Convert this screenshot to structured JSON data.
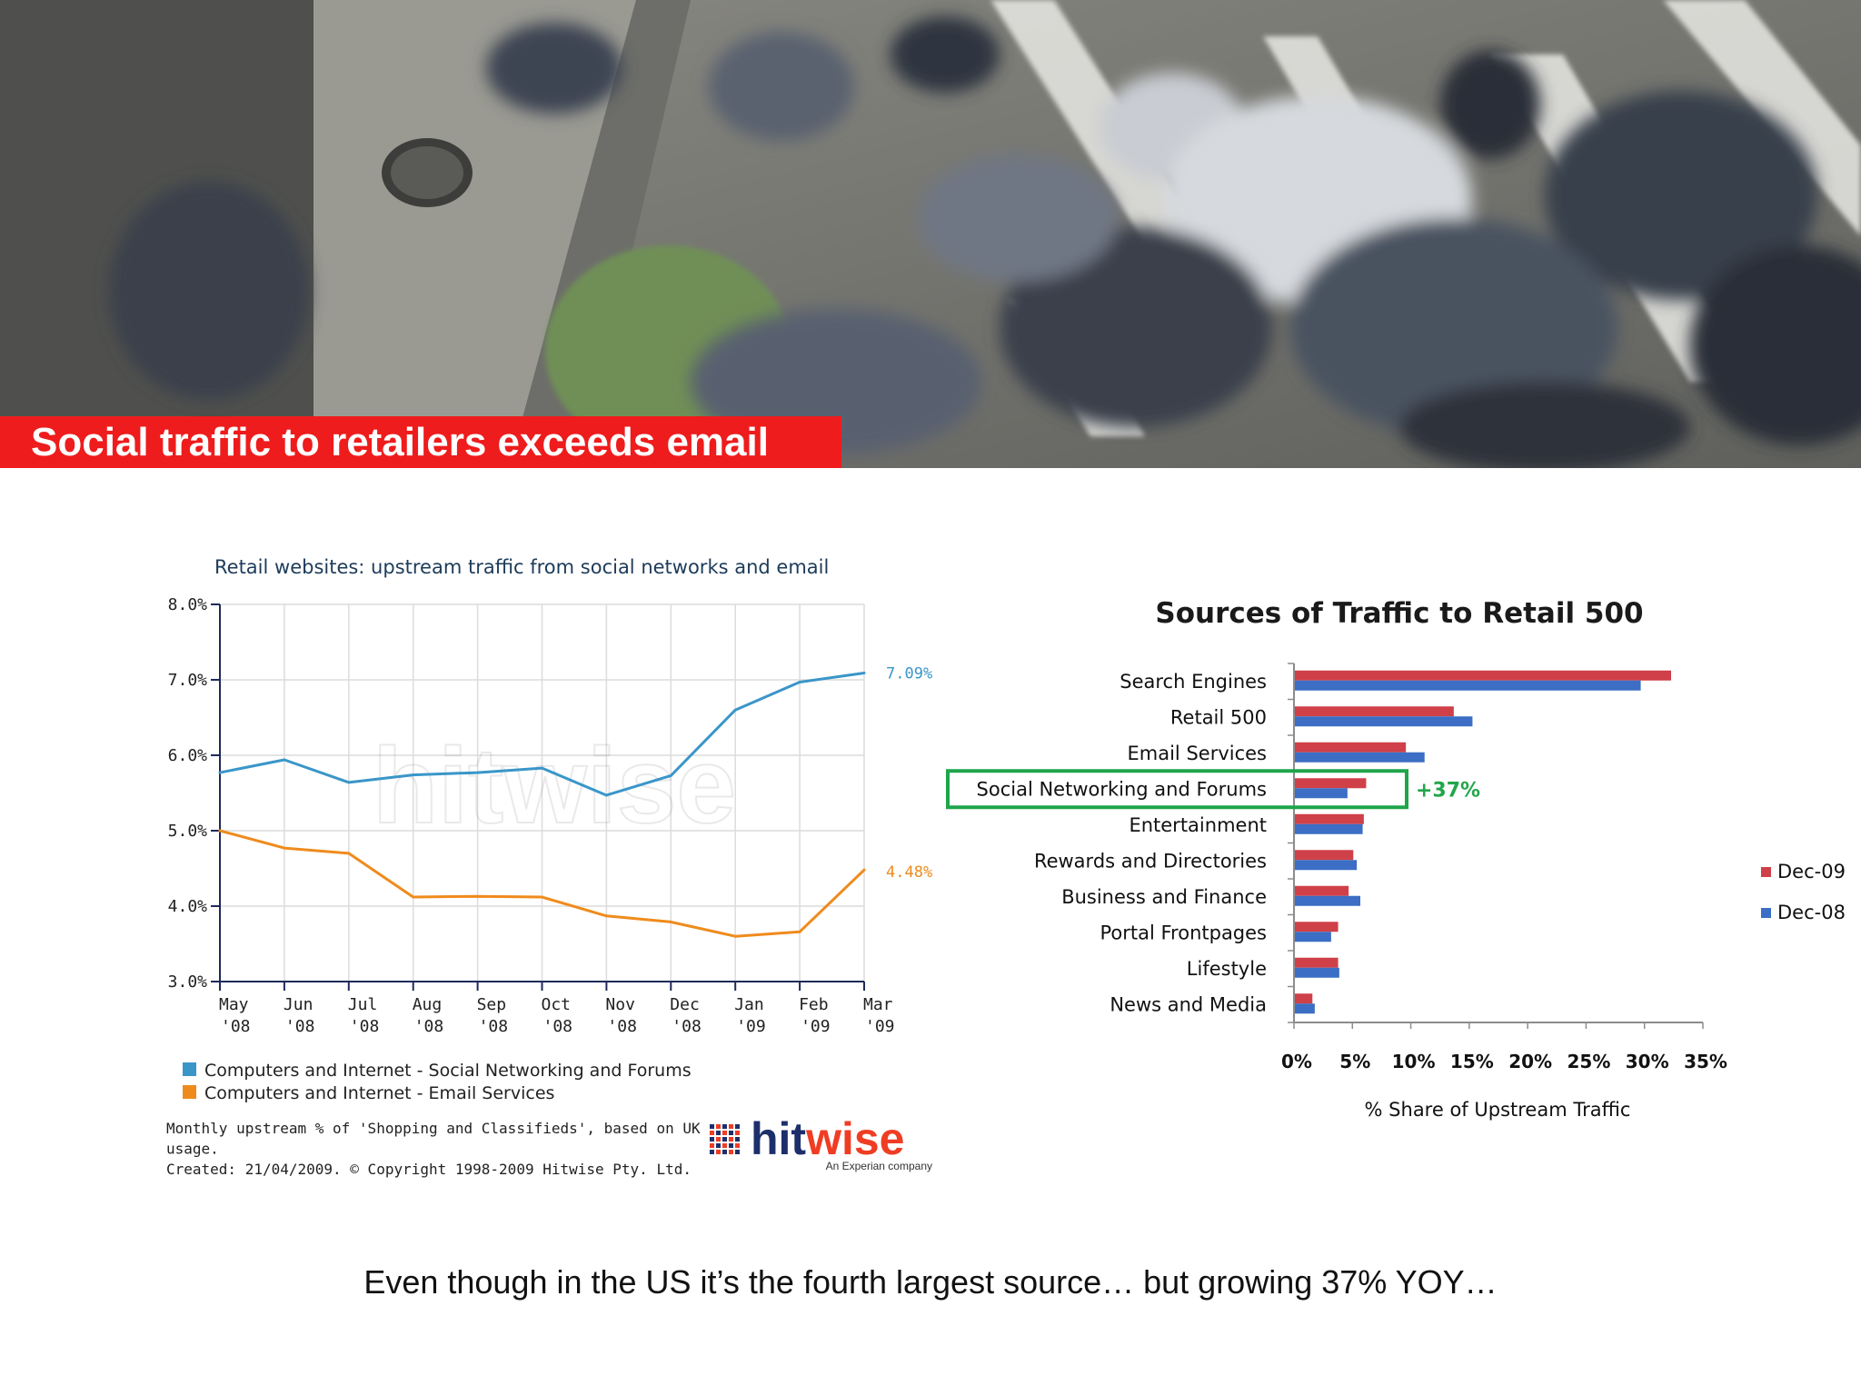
{
  "slide": {
    "title": "Social traffic to retailers exceeds email",
    "caption": "Even though in the US it’s the fourth largest source… but growing 37% YOY…"
  },
  "chart_data": [
    {
      "type": "line",
      "title": "Retail websites: upstream traffic from social networks and email",
      "x": [
        "May '08",
        "Jun '08",
        "Jul '08",
        "Aug '08",
        "Sep '08",
        "Oct '08",
        "Nov '08",
        "Dec '08",
        "Jan '09",
        "Feb '09",
        "Mar '09"
      ],
      "ylim": [
        3.0,
        8.0
      ],
      "yticks": [
        "3.0%",
        "4.0%",
        "5.0%",
        "6.0%",
        "7.0%",
        "8.0%"
      ],
      "grid": true,
      "series": [
        {
          "name": "Computers and Internet - Social Networking and Forums",
          "color": "#3a96c9",
          "values": [
            5.77,
            5.94,
            5.64,
            5.74,
            5.77,
            5.83,
            5.47,
            5.73,
            6.6,
            6.97,
            7.09
          ],
          "end_label": "7.09%"
        },
        {
          "name": "Computers and Internet - Email Services",
          "color": "#ef8b1c",
          "values": [
            5.0,
            4.77,
            4.7,
            4.12,
            4.13,
            4.12,
            3.87,
            3.79,
            3.6,
            3.66,
            4.48
          ],
          "end_label": "4.48%"
        }
      ],
      "note": [
        "Monthly upstream % of 'Shopping and Classifieds', based on UK",
        "usage.",
        "Created: 21/04/2009. © Copyright 1998-2009 Hitwise Pty. Ltd."
      ],
      "watermark": "hitwise",
      "logo": {
        "brand_a": "hit",
        "brand_b": "wise",
        "tagline": "An Experian company"
      }
    },
    {
      "type": "bar",
      "orientation": "horizontal",
      "title": "Sources of Traffic to Retail 500",
      "categories": [
        "Search Engines",
        "Retail 500",
        "Email Services",
        "Social Networking and Forums",
        "Entertainment",
        "Rewards and Directories",
        "Business and Finance",
        "Portal Frontpages",
        "Lifestyle",
        "News and Media"
      ],
      "series": [
        {
          "name": "Dec-09",
          "color": "#cf4048",
          "values": [
            32.2,
            13.6,
            9.5,
            6.1,
            5.9,
            5.0,
            4.6,
            3.7,
            3.7,
            1.5
          ]
        },
        {
          "name": "Dec-08",
          "color": "#3b6ec4",
          "values": [
            29.6,
            15.2,
            11.1,
            4.5,
            5.8,
            5.3,
            5.6,
            3.1,
            3.8,
            1.7
          ]
        }
      ],
      "xlim": [
        0,
        35
      ],
      "xticks": [
        "0%",
        "5%",
        "10%",
        "15%",
        "20%",
        "25%",
        "30%",
        "35%"
      ],
      "xlabel": "% Share of Upstream Traffic",
      "legend": "right",
      "highlight": {
        "category": "Social Networking and Forums",
        "annotation": "+37%",
        "color": "#1fa54a"
      }
    }
  ]
}
